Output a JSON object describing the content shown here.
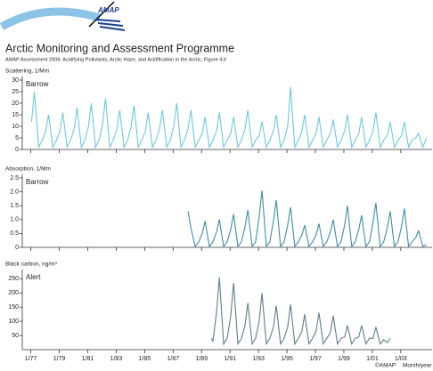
{
  "header": {
    "logo": "AMAP",
    "title": "Arctic Monitoring and Assessment Programme",
    "subtitle": "AMAP Assessment 2006: Acidifying Pollutants, Arctic Haze, and Acidification in the Arctic, Figure 4.6",
    "copyright": "©AMAP"
  },
  "chart_data": [
    {
      "type": "line",
      "ylabel": "Scattering, 1/Mm",
      "title": "Barrow",
      "color": "#6cc8e2",
      "xlim": [
        1976.4,
        2005.2
      ],
      "ylim": [
        0,
        30
      ],
      "yticks": [
        0,
        5,
        10,
        15,
        20,
        25,
        30
      ],
      "x": [
        1977.05,
        1977.25,
        1977.55,
        1977.8,
        1978.05,
        1978.25,
        1978.55,
        1978.8,
        1979.05,
        1979.25,
        1979.55,
        1979.8,
        1980.05,
        1980.25,
        1980.55,
        1980.8,
        1981.05,
        1981.25,
        1981.55,
        1981.8,
        1982.05,
        1982.25,
        1982.55,
        1982.8,
        1983.05,
        1983.25,
        1983.55,
        1983.8,
        1984.05,
        1984.25,
        1984.55,
        1984.8,
        1985.05,
        1985.25,
        1985.55,
        1985.8,
        1986.05,
        1986.25,
        1986.55,
        1986.8,
        1987.05,
        1987.25,
        1987.55,
        1987.8,
        1988.05,
        1988.25,
        1988.55,
        1988.8,
        1989.05,
        1989.25,
        1989.55,
        1989.8,
        1990.05,
        1990.25,
        1990.55,
        1990.8,
        1991.05,
        1991.25,
        1991.55,
        1991.8,
        1992.05,
        1992.25,
        1992.55,
        1992.8,
        1993.05,
        1993.25,
        1993.55,
        1993.8,
        1994.05,
        1994.25,
        1994.55,
        1994.8,
        1995.05,
        1995.25,
        1995.55,
        1995.8,
        1996.05,
        1996.25,
        1996.55,
        1996.8,
        1997.05,
        1997.25,
        1997.55,
        1997.8,
        1998.05,
        1998.25,
        1998.55,
        1998.8,
        1999.05,
        1999.25,
        1999.55,
        1999.8,
        2000.05,
        2000.25,
        2000.55,
        2000.8,
        2001.05,
        2001.25,
        2001.55,
        2001.8,
        2002.05,
        2002.25,
        2002.55,
        2002.8,
        2003.05,
        2003.25,
        2003.55,
        2003.8,
        2004.05,
        2004.25,
        2004.55,
        2004.8
      ],
      "values": [
        12,
        25,
        1,
        4,
        8,
        15,
        1,
        4,
        8,
        16,
        1,
        4,
        9,
        18,
        1,
        4,
        10,
        20,
        1,
        4,
        11,
        22,
        1,
        4,
        9,
        17,
        1,
        4,
        10,
        19,
        1,
        4,
        8,
        16,
        1,
        4,
        9,
        17,
        1,
        4,
        10,
        20,
        1,
        4,
        9,
        17,
        1,
        4,
        7,
        14,
        1,
        4,
        8,
        16,
        1,
        4,
        7,
        14,
        1,
        4,
        9,
        17,
        1,
        4,
        6,
        12,
        1,
        4,
        8,
        15,
        1,
        4,
        10,
        27,
        1,
        4,
        8,
        15,
        1,
        4,
        7,
        14,
        1,
        4,
        7,
        13,
        1,
        4,
        8,
        15,
        1,
        4,
        7,
        14,
        1,
        4,
        8,
        16,
        1,
        4,
        6,
        12,
        1,
        4,
        6,
        12,
        1,
        4,
        5,
        7,
        1,
        5
      ]
    },
    {
      "type": "line",
      "ylabel": "Absorption, 1/Mm",
      "title": "Barrow",
      "color": "#3d8ea8",
      "xlim": [
        1976.4,
        2005.2
      ],
      "ylim": [
        0,
        2.5
      ],
      "yticks": [
        0,
        0.5,
        {
          "value": 1,
          "label": "1.0"
        },
        1.5,
        {
          "value": 2,
          "label": "2.0"
        },
        2.5
      ],
      "x": [
        1988.05,
        1988.25,
        1988.55,
        1988.8,
        1989.05,
        1989.25,
        1989.55,
        1989.8,
        1990.05,
        1990.25,
        1990.55,
        1990.8,
        1991.05,
        1991.25,
        1991.55,
        1991.8,
        1992.05,
        1992.25,
        1992.55,
        1992.8,
        1993.05,
        1993.25,
        1993.55,
        1993.8,
        1994.05,
        1994.25,
        1994.55,
        1994.8,
        1995.05,
        1995.25,
        1995.55,
        1995.8,
        1996.05,
        1996.25,
        1996.55,
        1996.8,
        1997.05,
        1997.25,
        1997.55,
        1997.8,
        1998.05,
        1998.25,
        1998.55,
        1998.8,
        1999.05,
        1999.25,
        1999.55,
        1999.8,
        2000.05,
        2000.25,
        2000.55,
        2000.8,
        2001.05,
        2001.25,
        2001.55,
        2001.8,
        2002.05,
        2002.25,
        2002.55,
        2002.8,
        2003.05,
        2003.25,
        2003.55,
        2003.8,
        2004.05,
        2004.25,
        2004.55,
        2004.8
      ],
      "values": [
        1.3,
        0.7,
        0.03,
        0.2,
        0.5,
        0.95,
        0.03,
        0.2,
        0.55,
        1.0,
        0.03,
        0.2,
        0.65,
        1.2,
        0.03,
        0.2,
        0.75,
        1.35,
        0.03,
        0.2,
        1.1,
        2.05,
        0.03,
        0.2,
        0.95,
        1.7,
        0.03,
        0.2,
        0.8,
        1.45,
        0.03,
        0.2,
        0.45,
        0.8,
        0.03,
        0.2,
        0.45,
        0.85,
        0.03,
        0.2,
        0.55,
        1.0,
        0.03,
        0.2,
        0.8,
        1.5,
        0.03,
        0.2,
        0.65,
        1.15,
        0.03,
        0.2,
        0.9,
        1.6,
        0.03,
        0.2,
        0.7,
        1.3,
        0.03,
        0.2,
        0.75,
        1.4,
        0.03,
        0.2,
        0.35,
        0.6,
        0.03,
        0.1
      ]
    },
    {
      "type": "line",
      "ylabel": "Black carbon, ng/m³",
      "title": "Alert",
      "color": "#5e7e8a",
      "xlim": [
        1976.4,
        2005.2
      ],
      "ylim": [
        0,
        270
      ],
      "yticks": [
        50,
        100,
        150,
        200,
        250
      ],
      "xlabel": "Month/year",
      "xticks": [
        {
          "value": 1977,
          "label": "1/77"
        },
        {
          "value": 1979,
          "label": "1/79"
        },
        {
          "value": 1981,
          "label": "1/81"
        },
        {
          "value": 1983,
          "label": "1/83"
        },
        {
          "value": 1985,
          "label": "1/85"
        },
        {
          "value": 1987,
          "label": "1/87"
        },
        {
          "value": 1989,
          "label": "1/89"
        },
        {
          "value": 1991,
          "label": "1/91"
        },
        {
          "value": 1993,
          "label": "1/93"
        },
        {
          "value": 1995,
          "label": "1/95"
        },
        {
          "value": 1997,
          "label": "1/97"
        },
        {
          "value": 1999,
          "label": "1/99"
        },
        {
          "value": 2001,
          "label": "1/01"
        },
        {
          "value": 2003,
          "label": "1/03"
        }
      ],
      "x": [
        1989.7,
        1989.8,
        1990.05,
        1990.25,
        1990.55,
        1990.8,
        1991.05,
        1991.25,
        1991.55,
        1991.8,
        1992.05,
        1992.25,
        1992.55,
        1992.8,
        1993.05,
        1993.25,
        1993.55,
        1993.8,
        1994.05,
        1994.25,
        1994.55,
        1994.8,
        1995.05,
        1995.25,
        1995.55,
        1995.8,
        1996.05,
        1996.25,
        1996.55,
        1996.8,
        1997.05,
        1997.25,
        1997.55,
        1997.8,
        1998.05,
        1998.25,
        1998.55,
        1998.8,
        1999.05,
        1999.25,
        1999.55,
        1999.8,
        2000.05,
        2000.25,
        2000.55,
        2000.8,
        2001.05,
        2001.25,
        2001.55,
        2001.8,
        2002.05,
        2002.25
      ],
      "values": [
        40,
        30,
        130,
        255,
        20,
        40,
        120,
        235,
        20,
        40,
        85,
        165,
        20,
        40,
        100,
        200,
        20,
        40,
        80,
        155,
        20,
        40,
        80,
        160,
        20,
        40,
        65,
        125,
        20,
        40,
        65,
        130,
        20,
        40,
        60,
        120,
        20,
        40,
        45,
        85,
        20,
        40,
        45,
        85,
        20,
        40,
        40,
        80,
        20,
        35,
        25,
        40
      ]
    }
  ]
}
